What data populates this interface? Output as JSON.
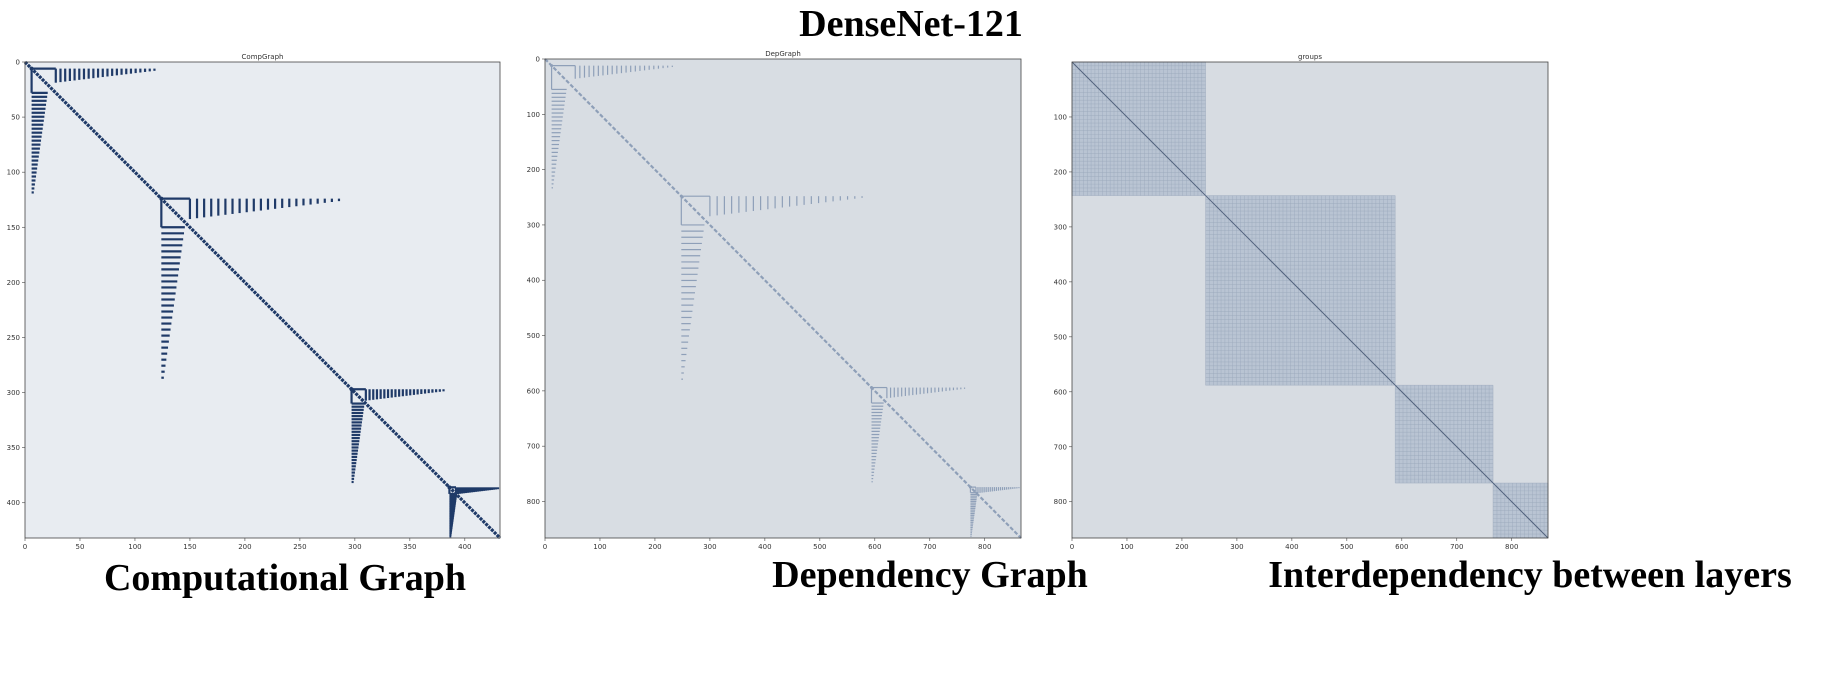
{
  "page": {
    "title": "DenseNet-121",
    "captions": [
      "Computational Graph",
      "Dependency Graph",
      "Interdependency between layers"
    ]
  },
  "colors": {
    "mark_dark": "#1f3a68",
    "mark_light": "#8e9fb8",
    "bg_panel1": "#e8ecf1",
    "bg_panel2": "#d8dde3",
    "bg_panel3": "#d7dce2",
    "group_fill": "#b9c4d3"
  },
  "chart_data": [
    {
      "type": "heatmap",
      "title": "CompGraph",
      "xlim": [
        0,
        432
      ],
      "ylim": [
        432,
        0
      ],
      "xticks": [
        0,
        50,
        100,
        150,
        200,
        250,
        300,
        350,
        400
      ],
      "yticks": [
        0,
        50,
        100,
        150,
        200,
        250,
        300,
        350,
        400
      ],
      "style": "dark",
      "diagonal": [
        [
          0,
          0
        ],
        [
          432,
          432
        ]
      ],
      "blocks": [
        {
          "start": 6,
          "fan_start": 28,
          "row_end": 122,
          "col_end": 122
        },
        {
          "start": 124,
          "fan_start": 150,
          "row_end": 292,
          "col_end": 292
        },
        {
          "start": 297,
          "fan_start": 310,
          "row_end": 384,
          "col_end": 384
        },
        {
          "start": 386,
          "fan_start": 392,
          "row_end": 432,
          "col_end": 432
        }
      ]
    },
    {
      "type": "heatmap",
      "title": "DepGraph",
      "xlim": [
        0,
        866
      ],
      "ylim": [
        866,
        0
      ],
      "xticks": [
        0,
        100,
        200,
        300,
        400,
        500,
        600,
        700,
        800
      ],
      "yticks": [
        0,
        100,
        200,
        300,
        400,
        500,
        600,
        700,
        800
      ],
      "style": "light",
      "diagonal": [
        [
          0,
          0
        ],
        [
          866,
          866
        ]
      ],
      "blocks": [
        {
          "start": 12,
          "fan_start": 55,
          "row_end": 240,
          "col_end": 240
        },
        {
          "start": 248,
          "fan_start": 300,
          "row_end": 590,
          "col_end": 590
        },
        {
          "start": 594,
          "fan_start": 622,
          "row_end": 770,
          "col_end": 770
        },
        {
          "start": 774,
          "fan_start": 784,
          "row_end": 866,
          "col_end": 866
        }
      ]
    },
    {
      "type": "heatmap",
      "title": "groups",
      "xlim": [
        0,
        866
      ],
      "ylim": [
        866,
        0
      ],
      "xticks": [
        0,
        100,
        200,
        300,
        400,
        500,
        600,
        700,
        800
      ],
      "yticks": [
        100,
        200,
        300,
        400,
        500,
        600,
        700,
        800
      ],
      "style": "groups",
      "groups": [
        [
          0,
          243
        ],
        [
          243,
          588
        ],
        [
          588,
          766
        ],
        [
          766,
          866
        ]
      ]
    }
  ]
}
